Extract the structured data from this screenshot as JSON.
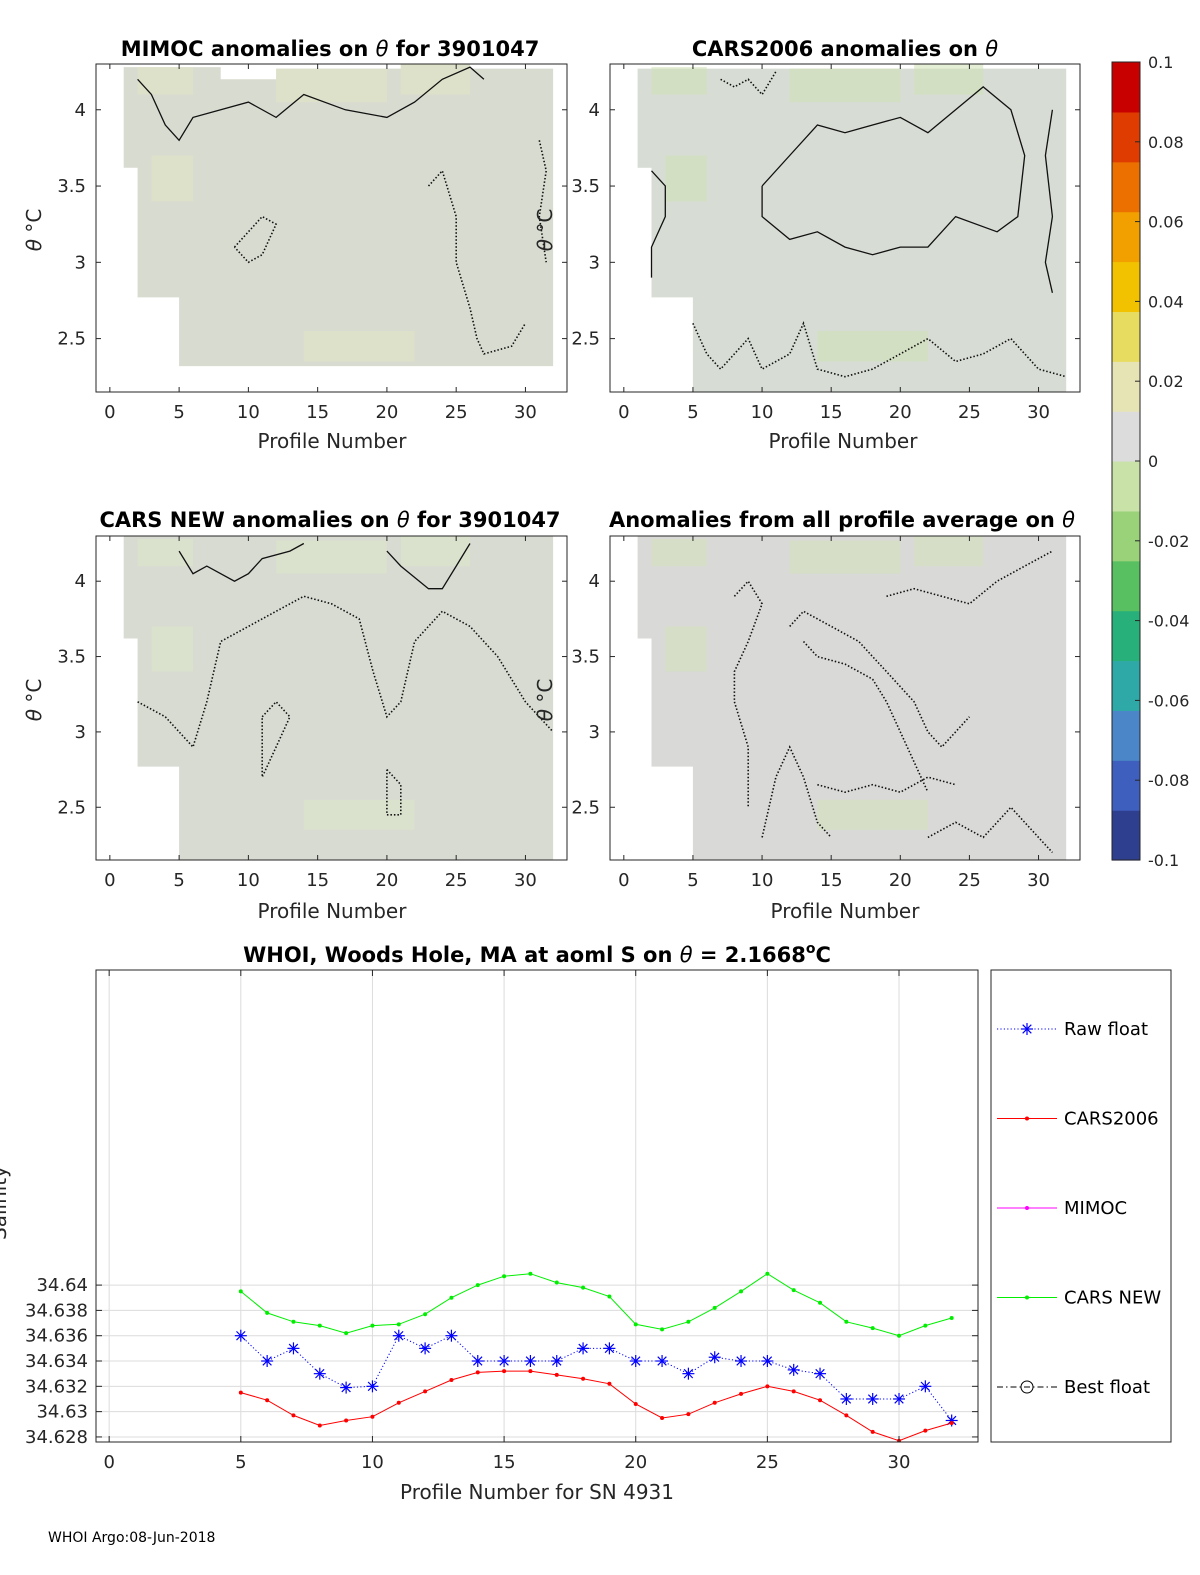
{
  "figure": {
    "footer": "WHOI Argo:08-Jun-2018"
  },
  "colorbar": {
    "ticks": [
      "0.1",
      "0.08",
      "0.06",
      "0.04",
      "0.02",
      "0",
      "-0.02",
      "-0.04",
      "-0.06",
      "-0.08",
      "-0.1"
    ],
    "range": [
      -0.1,
      0.1
    ],
    "colormap": [
      "#2f3f8f",
      "#3f5fbf",
      "#4a86c8",
      "#2fa9a8",
      "#28b07a",
      "#58c060",
      "#9ad27a",
      "#c9e2a8",
      "#dcdcdc",
      "#e6e4b4",
      "#e8dc60",
      "#f2c200",
      "#f2a000",
      "#ec7000",
      "#de3c00",
      "#c80000"
    ]
  },
  "panels": [
    {
      "title_prefix": "MIMOC anomalies on ",
      "title_symbol": "θ",
      "title_suffix": "  for 3901047",
      "ylabel_symbol": "θ",
      "ylabel_unit": " °C",
      "xlabel": "Profile Number",
      "xticks": [
        "0",
        "5",
        "10",
        "15",
        "20",
        "25",
        "30"
      ],
      "yticks": [
        "2.5",
        "3",
        "3.5",
        "4"
      ],
      "xlim": [
        -1,
        33
      ],
      "ylim": [
        2.15,
        4.3
      ],
      "fill": "#d8dbd0",
      "tint": "#e4e6c4"
    },
    {
      "title_prefix": "CARS2006 anomalies on ",
      "title_symbol": "θ",
      "title_suffix": "",
      "ylabel_symbol": "θ",
      "ylabel_unit": " °C",
      "xlabel": "Profile Number",
      "xticks": [
        "0",
        "5",
        "10",
        "15",
        "20",
        "25",
        "30"
      ],
      "yticks": [
        "2.5",
        "3",
        "3.5",
        "4"
      ],
      "xlim": [
        -1,
        33
      ],
      "ylim": [
        2.15,
        4.3
      ],
      "fill": "#d7dcd4",
      "tint": "#cfe2b4"
    },
    {
      "title_prefix": "CARS NEW anomalies on ",
      "title_symbol": "θ",
      "title_suffix": " for 3901047",
      "ylabel_symbol": "θ",
      "ylabel_unit": " °C",
      "xlabel": "Profile Number",
      "xticks": [
        "0",
        "5",
        "10",
        "15",
        "20",
        "25",
        "30"
      ],
      "yticks": [
        "2.5",
        "3",
        "3.5",
        "4"
      ],
      "xlim": [
        -1,
        33
      ],
      "ylim": [
        2.15,
        4.3
      ],
      "fill": "#d8dbd2",
      "tint": "#dde6c6"
    },
    {
      "title_prefix": "Anomalies from all profile average on ",
      "title_symbol": "θ",
      "title_suffix": "",
      "ylabel_symbol": "θ",
      "ylabel_unit": " °C",
      "xlabel": "Profile Number",
      "xticks": [
        "0",
        "5",
        "10",
        "15",
        "20",
        "25",
        "30"
      ],
      "yticks": [
        "2.5",
        "3",
        "3.5",
        "4"
      ],
      "xlim": [
        -1,
        33
      ],
      "ylim": [
        2.15,
        4.3
      ],
      "fill": "#d9dad7",
      "tint": "#d4e2bc"
    }
  ],
  "chart_data": {
    "type": "line",
    "title_prefix": "WHOI, Woods Hole, MA at aoml S on ",
    "title_symbol": "θ",
    "title_value": " = 2.1668",
    "title_unit_sup": "o",
    "title_unit": "C",
    "xlabel": "Profile Number for SN 4931",
    "ylabel": "Salinity",
    "xlim": [
      -0.5,
      33
    ],
    "ylim": [
      34.6276,
      34.6649
    ],
    "xticks": [
      "0",
      "5",
      "10",
      "15",
      "20",
      "25",
      "30"
    ],
    "yticks": [
      "34.628",
      "34.63",
      "34.632",
      "34.634",
      "34.636",
      "34.638",
      "34.64"
    ],
    "grid": true,
    "legend_position": "right-outside",
    "series": [
      {
        "name": "Raw float",
        "color": "#0000ff",
        "style": "dotted",
        "marker": "asterisk",
        "x": [
          5,
          6,
          7,
          8,
          9,
          10,
          11,
          12,
          13,
          14,
          15,
          16,
          17,
          18,
          19,
          20,
          21,
          22,
          23,
          24,
          25,
          26,
          27,
          28,
          29,
          30,
          31,
          32
        ],
        "y": [
          34.636,
          34.634,
          34.635,
          34.633,
          34.6319,
          34.632,
          34.636,
          34.635,
          34.636,
          34.634,
          34.634,
          34.634,
          34.634,
          34.635,
          34.635,
          34.634,
          34.634,
          34.633,
          34.6343,
          34.634,
          34.634,
          34.6333,
          34.633,
          34.631,
          34.631,
          34.631,
          34.632,
          34.6293
        ]
      },
      {
        "name": "CARS2006",
        "color": "#ff0000",
        "style": "solid",
        "marker": "dot",
        "x": [
          5,
          6,
          7,
          8,
          9,
          10,
          11,
          12,
          13,
          14,
          15,
          16,
          17,
          18,
          19,
          20,
          21,
          22,
          23,
          24,
          25,
          26,
          27,
          28,
          29,
          30,
          31,
          32
        ],
        "y": [
          34.6315,
          34.6309,
          34.6297,
          34.6289,
          34.6293,
          34.6296,
          34.6307,
          34.6316,
          34.6325,
          34.6331,
          34.6332,
          34.6332,
          34.6329,
          34.6326,
          34.6322,
          34.6306,
          34.6295,
          34.6298,
          34.6307,
          34.6314,
          34.632,
          34.6316,
          34.6309,
          34.6297,
          34.6284,
          34.6277,
          34.6285,
          34.6291
        ]
      },
      {
        "name": "MIMOC",
        "color": "#ff00ff",
        "style": "solid",
        "marker": "dot",
        "x": [],
        "y": []
      },
      {
        "name": "CARS NEW",
        "color": "#00ee00",
        "style": "solid",
        "marker": "dot",
        "x": [
          5,
          6,
          7,
          8,
          9,
          10,
          11,
          12,
          13,
          14,
          15,
          16,
          17,
          18,
          19,
          20,
          21,
          22,
          23,
          24,
          25,
          26,
          27,
          28,
          29,
          30,
          31,
          32
        ],
        "y": [
          34.6395,
          34.6378,
          34.6371,
          34.6368,
          34.6362,
          34.6368,
          34.6369,
          34.6377,
          34.639,
          34.64,
          34.6407,
          34.6409,
          34.6402,
          34.6398,
          34.6391,
          34.6369,
          34.6365,
          34.6371,
          34.6382,
          34.6395,
          34.6409,
          34.6396,
          34.6386,
          34.6371,
          34.6366,
          34.636,
          34.6368,
          34.6374
        ]
      },
      {
        "name": "Best float",
        "color": "#000000",
        "style": "dashdot",
        "marker": "circle",
        "x": [],
        "y": []
      }
    ]
  }
}
